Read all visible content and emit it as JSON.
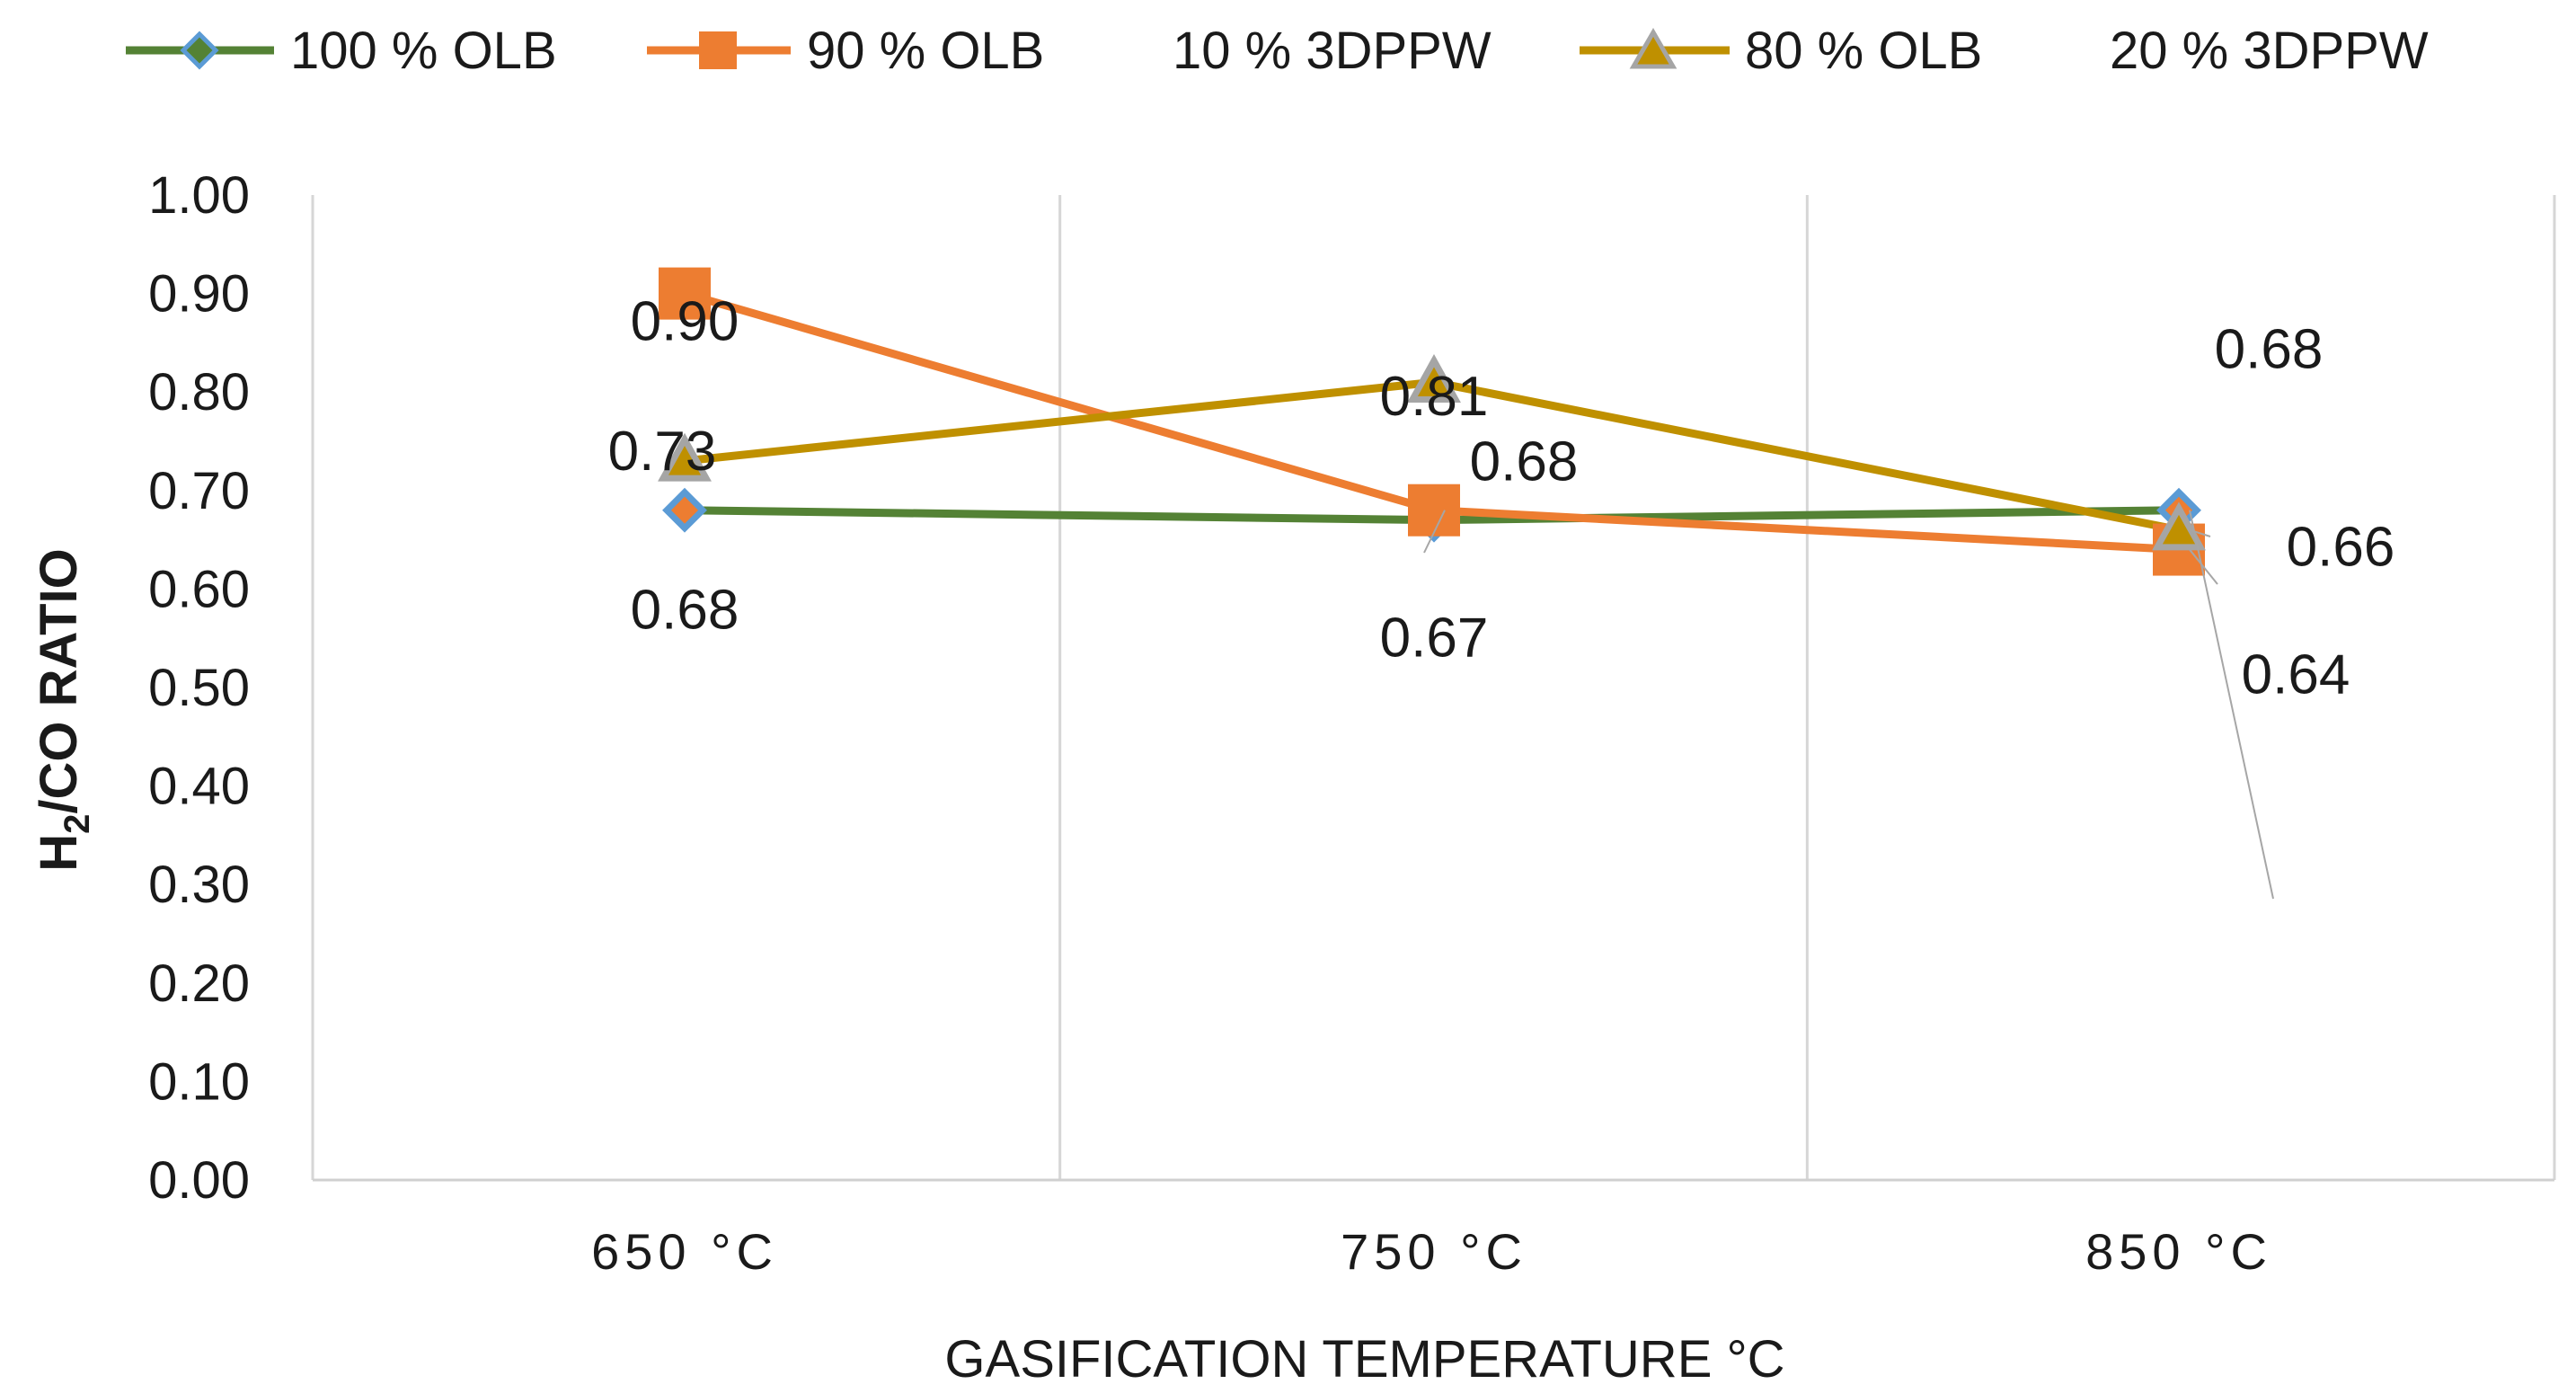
{
  "chart_data": {
    "type": "line",
    "title": "",
    "categories": [
      "650 °C",
      "750 °C",
      "850 °C"
    ],
    "xlabel": "GASIFICATION TEMPERATURE °C",
    "ylabel": {
      "pre": "H",
      "sub": "2",
      "post": "/CO RATIO"
    },
    "ylim": [
      0,
      1
    ],
    "yticks": [
      "0.00",
      "0.10",
      "0.20",
      "0.30",
      "0.40",
      "0.50",
      "0.60",
      "0.70",
      "0.80",
      "0.90",
      "1.00"
    ],
    "grid": "vertical",
    "legend_position": "top",
    "legend": [
      {
        "label": "100 % OLB",
        "series": 0
      },
      {
        "label": "90 % OLB",
        "series": 1
      },
      {
        "label": "10 % 3DPPW",
        "series": null
      },
      {
        "label": "80 % OLB",
        "series": 2
      },
      {
        "label": "20 % 3DPPW",
        "series": null
      }
    ],
    "series": [
      {
        "name": "100 % OLB",
        "values": [
          0.68,
          0.67,
          0.68
        ],
        "labels": [
          "0.68",
          "0.67",
          "0.68"
        ],
        "color": "#548235",
        "marker": "diamond",
        "marker_fill": "#ed7d31",
        "marker_stroke": "#5b9bd5"
      },
      {
        "name": "90 % OLB / 10 % 3DPPW",
        "values": [
          0.9,
          0.68,
          0.64
        ],
        "labels": [
          "0.90",
          "0.68",
          "0.64"
        ],
        "color": "#ed7d31",
        "marker": "square",
        "marker_fill": "#ed7d31",
        "marker_stroke": "#ed7d31"
      },
      {
        "name": "80 % OLB / 20 % 3DPPW",
        "values": [
          0.73,
          0.81,
          0.66
        ],
        "labels": [
          "0.73",
          "0.81",
          "0.66"
        ],
        "color": "#bf9000",
        "marker": "triangle",
        "marker_fill": "#bf9000",
        "marker_stroke": "#a5a5a5"
      }
    ]
  }
}
